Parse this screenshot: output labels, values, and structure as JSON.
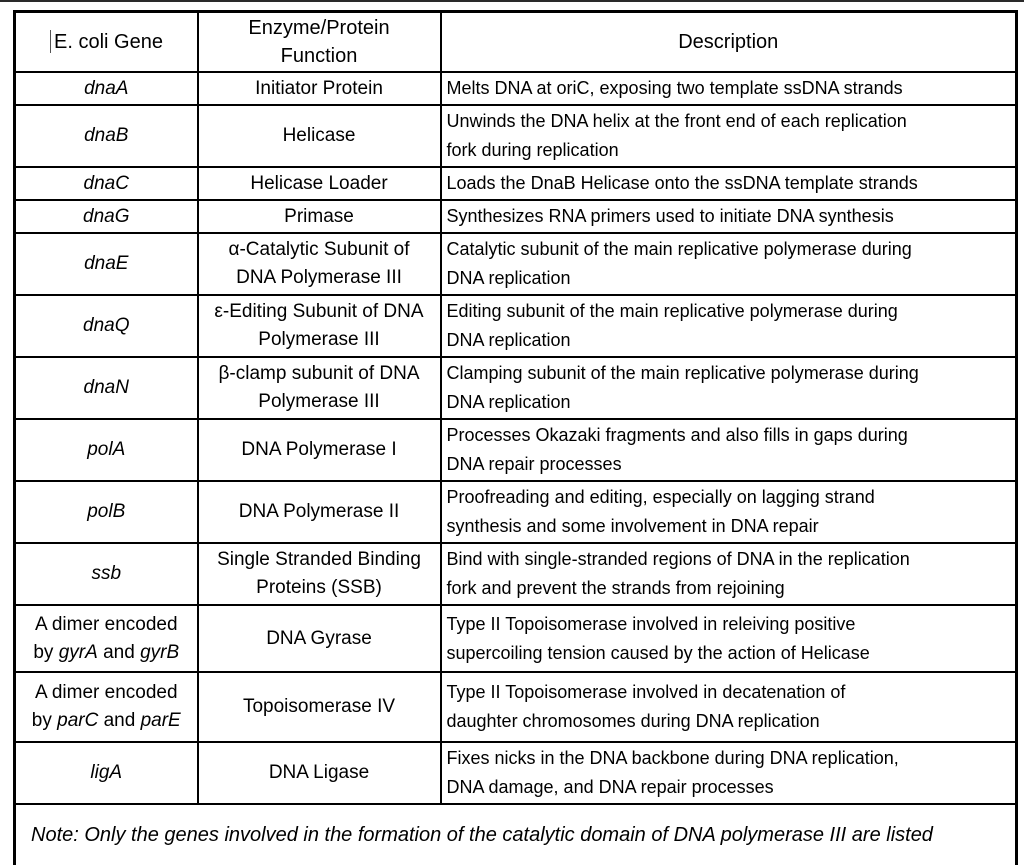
{
  "page": {
    "background": "#ffffff",
    "border_color": "#000000"
  },
  "table": {
    "headers": [
      "E. coli Gene",
      "Enzyme/Protein\nFunction",
      "Description"
    ],
    "rows": [
      {
        "gene": [
          {
            "t": "dnaA",
            "i": true
          }
        ],
        "function": "Initiator Protein",
        "description": "Melts DNA at oriC, exposing two template ssDNA strands"
      },
      {
        "gene": [
          {
            "t": "dnaB",
            "i": true
          }
        ],
        "function": "Helicase",
        "description": "Unwinds the DNA helix at the front end of each replication\nfork during replication"
      },
      {
        "gene": [
          {
            "t": "dnaC",
            "i": true
          }
        ],
        "function": "Helicase Loader",
        "description": "Loads the DnaB Helicase onto the ssDNA template strands"
      },
      {
        "gene": [
          {
            "t": "dnaG",
            "i": true
          }
        ],
        "function": "Primase",
        "description": "Synthesizes RNA primers used to initiate DNA synthesis"
      },
      {
        "gene": [
          {
            "t": "dnaE",
            "i": true
          }
        ],
        "function": "α-Catalytic Subunit of\nDNA Polymerase III",
        "description": "Catalytic subunit of the main replicative polymerase during\nDNA replication"
      },
      {
        "gene": [
          {
            "t": "dnaQ",
            "i": true
          }
        ],
        "function": "ε-Editing Subunit of DNA\nPolymerase III",
        "description": "Editing subunit of the main replicative polymerase during\nDNA replication"
      },
      {
        "gene": [
          {
            "t": "dnaN",
            "i": true
          }
        ],
        "function": "β-clamp subunit of DNA\nPolymerase III",
        "description": "Clamping subunit of the main replicative polymerase during\nDNA replication"
      },
      {
        "gene": [
          {
            "t": "polA",
            "i": true
          }
        ],
        "function": "DNA Polymerase I",
        "description": "Processes Okazaki fragments and also fills in gaps during\nDNA repair processes"
      },
      {
        "gene": [
          {
            "t": "polB",
            "i": true
          }
        ],
        "function": "DNA Polymerase II",
        "description": "Proofreading and editing, especially on lagging strand\nsynthesis and some involvement in DNA repair"
      },
      {
        "gene": [
          {
            "t": "ssb",
            "i": true
          }
        ],
        "function": "Single Stranded Binding\nProteins (SSB)",
        "description": "Bind with single-stranded regions of DNA in the replication\nfork and prevent the strands from rejoining"
      },
      {
        "gene": [
          {
            "t": "A dimer encoded\nby ",
            "i": false
          },
          {
            "t": "gyrA",
            "i": true
          },
          {
            "t": " and ",
            "i": false
          },
          {
            "t": "gyrB",
            "i": true
          }
        ],
        "function": "DNA Gyrase",
        "description": "Type II Topoisomerase involved in releiving positive\nsupercoiling tension caused by the action of Helicase"
      },
      {
        "gene": [
          {
            "t": "A dimer encoded\nby ",
            "i": false
          },
          {
            "t": "parC",
            "i": true
          },
          {
            "t": " and ",
            "i": false
          },
          {
            "t": "parE",
            "i": true
          }
        ],
        "function": "Topoisomerase IV",
        "description": "Type II Topoisomerase involved in decatenation of\ndaughter chromosomes during DNA replication"
      },
      {
        "gene": [
          {
            "t": "ligA",
            "i": true
          }
        ],
        "function": "DNA Ligase",
        "description": "Fixes nicks in the DNA backbone during DNA replication,\nDNA damage, and DNA repair processes"
      }
    ],
    "note": "Note: Only the genes involved in the formation of the catalytic domain of DNA polymerase III are listed"
  }
}
